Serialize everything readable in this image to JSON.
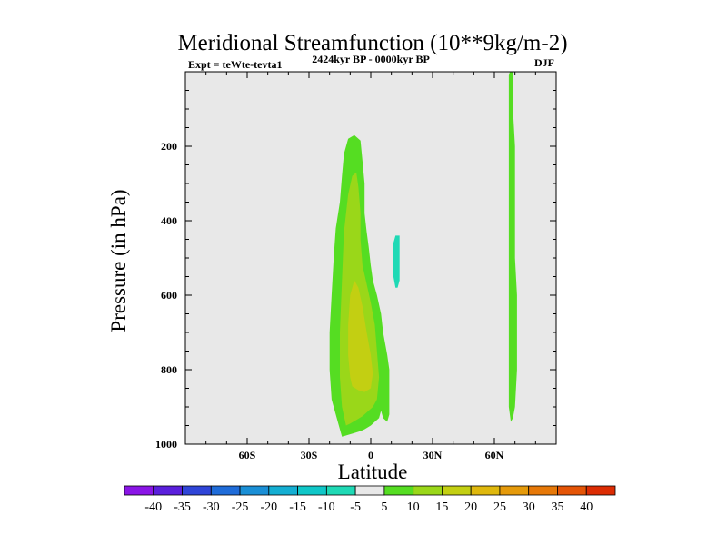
{
  "chart_data": {
    "type": "contour",
    "title": "Meridional Streamfunction (10**9kg/m-2)",
    "subtitle": "2424kyr BP - 0000kyr BP",
    "left_label": "Expt = teWte-tevta1",
    "right_label": "DJF",
    "xlabel": "Latitude",
    "ylabel": "Pressure (in hPa)",
    "xlim": [
      -90,
      90
    ],
    "ylim": [
      1000,
      0
    ],
    "x_ticks": [
      {
        "value": -60,
        "label": "60S"
      },
      {
        "value": -30,
        "label": "30S"
      },
      {
        "value": 0,
        "label": "0"
      },
      {
        "value": 30,
        "label": "30N"
      },
      {
        "value": 60,
        "label": "60N"
      }
    ],
    "y_ticks": [
      {
        "value": 200,
        "label": "200"
      },
      {
        "value": 400,
        "label": "400"
      },
      {
        "value": 600,
        "label": "600"
      },
      {
        "value": 800,
        "label": "800"
      },
      {
        "value": 1000,
        "label": "1000"
      }
    ],
    "colorbar": {
      "labels": [
        "-40",
        "-35",
        "-30",
        "-25",
        "-20",
        "-15",
        "-10",
        "-5",
        "5",
        "10",
        "15",
        "20",
        "25",
        "30",
        "35",
        "40"
      ],
      "colors": [
        "#8a15e6",
        "#5a1fdc",
        "#2f45d8",
        "#1f6cd9",
        "#1a8fd6",
        "#14aed2",
        "#10c7c8",
        "#1fd9b5",
        "#e8e8e8",
        "#55dd22",
        "#9ad719",
        "#c3cf12",
        "#dfb80d",
        "#e59a0a",
        "#e67808",
        "#e45406",
        "#dc2c03"
      ]
    },
    "background_color": "#e8e8e8",
    "contours": [
      {
        "name": "plus-5-region",
        "level": "5",
        "color": "#55dd22",
        "points": [
          [
            -14,
            980
          ],
          [
            -16,
            940
          ],
          [
            -19,
            880
          ],
          [
            -20,
            800
          ],
          [
            -20,
            700
          ],
          [
            -19,
            600
          ],
          [
            -18,
            500
          ],
          [
            -17,
            420
          ],
          [
            -15,
            350
          ],
          [
            -14,
            280
          ],
          [
            -13,
            220
          ],
          [
            -11,
            180
          ],
          [
            -8,
            170
          ],
          [
            -5,
            185
          ],
          [
            -4,
            240
          ],
          [
            -3,
            300
          ],
          [
            -3,
            380
          ],
          [
            -2,
            430
          ],
          [
            -1,
            470
          ],
          [
            0,
            520
          ],
          [
            1,
            560
          ],
          [
            3,
            600
          ],
          [
            5,
            650
          ],
          [
            6,
            700
          ],
          [
            8,
            760
          ],
          [
            9,
            800
          ],
          [
            9,
            860
          ],
          [
            9,
            920
          ],
          [
            8,
            940
          ],
          [
            6,
            930
          ],
          [
            5,
            910
          ],
          [
            4,
            930
          ],
          [
            2,
            940
          ],
          [
            0,
            950
          ],
          [
            -3,
            960
          ],
          [
            -5,
            965
          ],
          [
            -8,
            970
          ],
          [
            -11,
            975
          ]
        ]
      },
      {
        "name": "plus-10-region",
        "level": "10",
        "color": "#9ad719",
        "points": [
          [
            -12,
            950
          ],
          [
            -14,
            900
          ],
          [
            -15,
            820
          ],
          [
            -15,
            700
          ],
          [
            -14,
            560
          ],
          [
            -13,
            430
          ],
          [
            -11,
            330
          ],
          [
            -9,
            280
          ],
          [
            -7,
            270
          ],
          [
            -6,
            310
          ],
          [
            -5,
            380
          ],
          [
            -5,
            450
          ],
          [
            -4,
            520
          ],
          [
            -2,
            570
          ],
          [
            0,
            620
          ],
          [
            2,
            680
          ],
          [
            3,
            750
          ],
          [
            4,
            820
          ],
          [
            3,
            880
          ],
          [
            1,
            900
          ],
          [
            -1,
            910
          ],
          [
            -4,
            925
          ],
          [
            -7,
            935
          ],
          [
            -10,
            945
          ]
        ]
      },
      {
        "name": "plus-15-region",
        "level": "15",
        "color": "#c3cf12",
        "points": [
          [
            -10,
            820
          ],
          [
            -11,
            760
          ],
          [
            -11,
            680
          ],
          [
            -10,
            600
          ],
          [
            -8,
            560
          ],
          [
            -6,
            580
          ],
          [
            -4,
            630
          ],
          [
            -2,
            700
          ],
          [
            0,
            760
          ],
          [
            1,
            810
          ],
          [
            0,
            850
          ],
          [
            -3,
            860
          ],
          [
            -6,
            855
          ],
          [
            -9,
            845
          ]
        ]
      },
      {
        "name": "minus-5-region",
        "level": "-5",
        "color": "#1fd9b5",
        "points": [
          [
            12,
            580
          ],
          [
            11,
            550
          ],
          [
            11,
            500
          ],
          [
            11,
            460
          ],
          [
            12,
            440
          ],
          [
            14,
            440
          ],
          [
            14,
            480
          ],
          [
            14,
            520
          ],
          [
            14,
            560
          ],
          [
            13,
            580
          ]
        ]
      },
      {
        "name": "northern-plus-5-region",
        "level": "5",
        "color": "#55dd22",
        "points": [
          [
            68,
            940
          ],
          [
            67,
            900
          ],
          [
            67,
            800
          ],
          [
            67,
            700
          ],
          [
            67,
            600
          ],
          [
            67,
            500
          ],
          [
            67,
            400
          ],
          [
            67,
            300
          ],
          [
            67,
            200
          ],
          [
            67,
            100
          ],
          [
            67,
            10
          ],
          [
            67.5,
            0
          ],
          [
            69,
            0
          ],
          [
            69,
            100
          ],
          [
            70,
            200
          ],
          [
            70,
            300
          ],
          [
            70,
            400
          ],
          [
            70,
            500
          ],
          [
            71,
            600
          ],
          [
            71,
            700
          ],
          [
            71,
            800
          ],
          [
            70,
            900
          ],
          [
            69,
            930
          ]
        ]
      }
    ]
  }
}
